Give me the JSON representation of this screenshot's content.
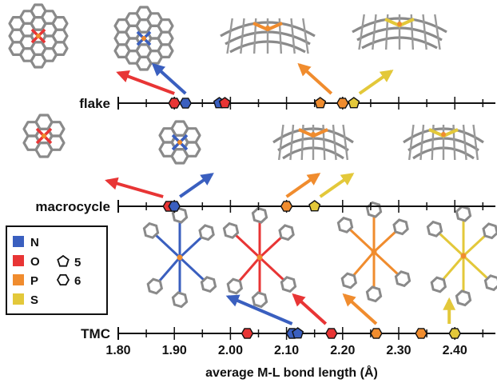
{
  "chart_data": {
    "type": "scatter",
    "xlabel": "average M-L bond length (Å)",
    "xlim": [
      1.8,
      2.45
    ],
    "tick_values": [
      1.8,
      1.9,
      2.0,
      2.1,
      2.2,
      2.3,
      2.4
    ],
    "tick_labels": [
      "1.80",
      "1.90",
      "2.00",
      "2.10",
      "2.20",
      "2.30",
      "2.40"
    ],
    "rows": [
      {
        "name": "flake",
        "points": [
          {
            "element": "O",
            "ring": 6,
            "x": 1.9
          },
          {
            "element": "N",
            "ring": 6,
            "x": 1.92
          },
          {
            "element": "N",
            "ring": 5,
            "x": 1.98
          },
          {
            "element": "O",
            "ring": 5,
            "x": 1.99
          },
          {
            "element": "P",
            "ring": 5,
            "x": 2.16
          },
          {
            "element": "P",
            "ring": 6,
            "x": 2.2
          },
          {
            "element": "S",
            "ring": 5,
            "x": 2.22
          }
        ],
        "arrows": [
          {
            "color": "O",
            "from_x": 1.9,
            "dir": "up-left"
          },
          {
            "color": "N",
            "from_x": 1.92,
            "dir": "up-left"
          },
          {
            "color": "P",
            "from_x": 2.18,
            "dir": "up-left"
          },
          {
            "color": "S",
            "from_x": 2.23,
            "dir": "up-right"
          }
        ]
      },
      {
        "name": "macrocycle",
        "points": [
          {
            "element": "O",
            "ring": 6,
            "x": 1.89
          },
          {
            "element": "N",
            "ring": 6,
            "x": 1.9
          },
          {
            "element": "P",
            "ring": 6,
            "x": 2.1
          },
          {
            "element": "S",
            "ring": 5,
            "x": 2.15
          }
        ],
        "arrows": [
          {
            "color": "O",
            "from_x": 1.88,
            "dir": "up-left"
          },
          {
            "color": "N",
            "from_x": 1.91,
            "dir": "up-right"
          },
          {
            "color": "P",
            "from_x": 2.1,
            "dir": "up-right"
          },
          {
            "color": "S",
            "from_x": 2.16,
            "dir": "up-right"
          }
        ]
      },
      {
        "name": "TMC",
        "points": [
          {
            "element": "O",
            "ring": 6,
            "x": 2.03
          },
          {
            "element": "N",
            "ring": 6,
            "x": 2.11
          },
          {
            "element": "N",
            "ring": 5,
            "x": 2.12
          },
          {
            "element": "O",
            "ring": 6,
            "x": 2.18
          },
          {
            "element": "P",
            "ring": 6,
            "x": 2.26
          },
          {
            "element": "P",
            "ring": 6,
            "x": 2.34
          },
          {
            "element": "S",
            "ring": 6,
            "x": 2.4
          }
        ],
        "arrows": [
          {
            "color": "N",
            "from_x": 2.11,
            "dir": "up-left"
          },
          {
            "color": "O",
            "from_x": 2.17,
            "dir": "up-left"
          },
          {
            "color": "P",
            "from_x": 2.26,
            "dir": "up-left"
          },
          {
            "color": "S",
            "from_x": 2.39,
            "dir": "up"
          }
        ]
      }
    ],
    "legend": {
      "placement": "left-middle",
      "elements": [
        {
          "label": "N",
          "color": "#3a5fbf"
        },
        {
          "label": "O",
          "color": "#e83535"
        },
        {
          "label": "P",
          "color": "#f08c2e"
        },
        {
          "label": "S",
          "color": "#e3c83a"
        }
      ],
      "shapes": [
        {
          "label": "5",
          "shape": "pentagon"
        },
        {
          "label": "6",
          "shape": "hexagon"
        }
      ]
    }
  }
}
